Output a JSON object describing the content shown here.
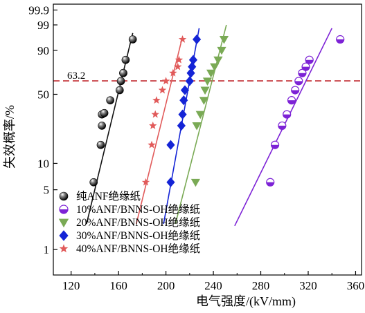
{
  "chart_data": {
    "type": "scatter",
    "title": "",
    "xlabel": "电气强度/(kV/mm)",
    "ylabel": "失效概率/%",
    "xlim": [
      105,
      365
    ],
    "ylim": [
      0.5,
      99.97
    ],
    "y_scale": "weibull-probability",
    "x_ticks": [
      120,
      160,
      200,
      240,
      280,
      320,
      360
    ],
    "y_ticks": [
      1,
      5,
      10,
      50,
      90,
      99,
      99.9
    ],
    "grid": false,
    "legend_position": "bottom-left",
    "reference_line": {
      "y": 63.2,
      "label": "63.2",
      "color": "#c0272d",
      "style": "dashed"
    },
    "series": [
      {
        "name": "纯ANF绝缘纸",
        "marker": "sphere",
        "color": "#111111",
        "x": [
          139,
          145,
          146,
          146,
          148,
          153,
          161,
          162,
          164,
          164,
          166,
          172
        ],
        "y": [
          6.1,
          16,
          25.5,
          33,
          34,
          44.5,
          54,
          63,
          71,
          71,
          83,
          95.5
        ],
        "fit": {
          "x": [
            133,
            172
          ],
          "y": [
            2.0,
            97.5
          ]
        }
      },
      {
        "name": "10%ANF/BNNS-OH绝缘纸",
        "marker": "half-circle",
        "color": "#7d22d6",
        "x": [
          288,
          292,
          298,
          302,
          306,
          309,
          312,
          315,
          318,
          321,
          347
        ],
        "y": [
          6.1,
          16,
          25.5,
          33,
          44.5,
          54,
          63,
          71,
          77,
          83,
          95.5
        ],
        "fit": {
          "x": [
            258,
            340
          ],
          "y": [
            1.9,
            98.5
          ]
        }
      },
      {
        "name": "20%ANF/BNNS-OH绝缘纸",
        "marker": "triangle-down",
        "color": "#7aaa55",
        "x": [
          225,
          226,
          229,
          232,
          233,
          235,
          238,
          241,
          244,
          247,
          249
        ],
        "y": [
          6.1,
          25.5,
          33,
          44.5,
          54,
          63,
          71,
          77,
          83,
          90,
          95.5
        ],
        "fit": {
          "x": [
            208,
            251
          ],
          "y": [
            2.0,
            99
          ]
        }
      },
      {
        "name": "30%ANF/BNNS-OH绝缘纸",
        "marker": "diamond",
        "color": "#1424d6",
        "x": [
          204,
          204,
          213,
          214,
          215,
          216,
          220,
          221,
          222,
          223,
          226
        ],
        "y": [
          6.1,
          16,
          25.5,
          33,
          44.5,
          54,
          63,
          71,
          77,
          83,
          95.5
        ],
        "fit": {
          "x": [
            198,
            228
          ],
          "y": [
            2.0,
            98.5
          ]
        }
      },
      {
        "name": "40%ANF/BNNS-OH绝缘纸",
        "marker": "star",
        "color": "#e15a5a",
        "x": [
          183,
          188,
          189,
          191,
          192,
          197,
          200,
          206,
          210,
          211,
          214
        ],
        "y": [
          6.1,
          16,
          25.5,
          33,
          44.5,
          54,
          63,
          71,
          77,
          83,
          95.5
        ],
        "fit": {
          "x": [
            175,
            214
          ],
          "y": [
            2.0,
            96.5
          ]
        }
      }
    ]
  }
}
